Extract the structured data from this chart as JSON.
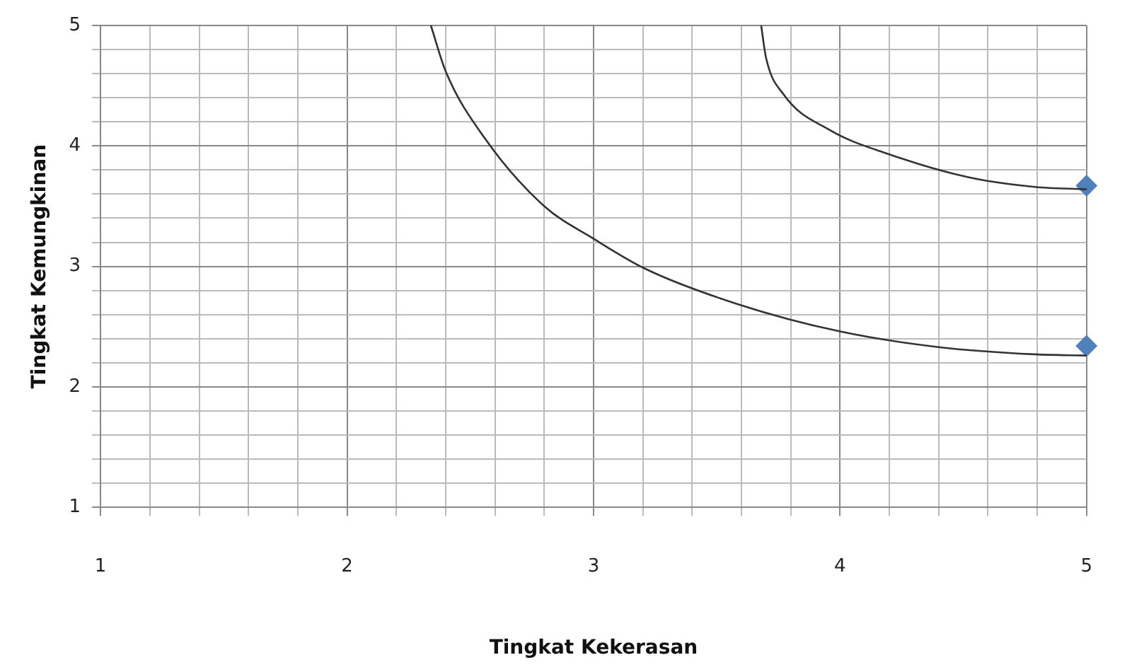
{
  "chart_data": {
    "type": "line",
    "xlabel": "Tingkat Kekerasan",
    "ylabel": "Tingkat Kemungkinan",
    "xlim": [
      1,
      5
    ],
    "ylim": [
      1,
      5
    ],
    "xticks": [
      1,
      {
        "value": 1.2,
        "label": null
      },
      {
        "value": 1.4,
        "label": null
      },
      {
        "value": 1.6,
        "label": null
      },
      {
        "value": 1.8,
        "label": null
      },
      2,
      {
        "value": 2.2,
        "label": null
      },
      {
        "value": 2.4,
        "label": null
      },
      {
        "value": 2.6,
        "label": null
      },
      {
        "value": 2.8,
        "label": null
      },
      3,
      {
        "value": 3.2,
        "label": null
      },
      {
        "value": 3.4,
        "label": null
      },
      {
        "value": 3.6,
        "label": null
      },
      {
        "value": 3.8,
        "label": null
      },
      4,
      {
        "value": 4.2,
        "label": null
      },
      {
        "value": 4.4,
        "label": null
      },
      {
        "value": 4.6,
        "label": null
      },
      {
        "value": 4.8,
        "label": null
      },
      5
    ],
    "yticks": [
      1,
      {
        "value": 1.2,
        "label": null
      },
      {
        "value": 1.4,
        "label": null
      },
      {
        "value": 1.6,
        "label": null
      },
      {
        "value": 1.8,
        "label": null
      },
      2,
      {
        "value": 2.2,
        "label": null
      },
      {
        "value": 2.4,
        "label": null
      },
      {
        "value": 2.6,
        "label": null
      },
      {
        "value": 2.8,
        "label": null
      },
      3,
      {
        "value": 3.2,
        "label": null
      },
      {
        "value": 3.4,
        "label": null
      },
      {
        "value": 3.6,
        "label": null
      },
      {
        "value": 3.8,
        "label": null
      },
      4,
      {
        "value": 4.2,
        "label": null
      },
      {
        "value": 4.4,
        "label": null
      },
      {
        "value": 4.6,
        "label": null
      },
      {
        "value": 4.8,
        "label": null
      },
      5
    ],
    "grid": true,
    "legend": false,
    "series": [
      {
        "type": "line",
        "color": "#333333",
        "marker": "none",
        "x": [
          2.34,
          2.4,
          2.56,
          2.8,
          3.0,
          3.21,
          3.58,
          4.0,
          4.4,
          4.79,
          5.0
        ],
        "values": [
          5.0,
          4.62,
          4.06,
          3.5,
          3.23,
          2.98,
          2.69,
          2.46,
          2.33,
          2.27,
          2.26
        ]
      },
      {
        "type": "line",
        "color": "#333333",
        "marker": "none",
        "x": [
          3.68,
          3.7,
          3.77,
          3.96,
          4.2,
          4.52,
          4.79,
          5.0
        ],
        "values": [
          5.0,
          4.73,
          4.43,
          4.13,
          3.93,
          3.74,
          3.66,
          3.64
        ]
      },
      {
        "type": "scatter",
        "color": "#4f81bd",
        "marker": "diamond",
        "x": [
          5,
          5
        ],
        "values": [
          2.34,
          3.67
        ]
      }
    ]
  }
}
